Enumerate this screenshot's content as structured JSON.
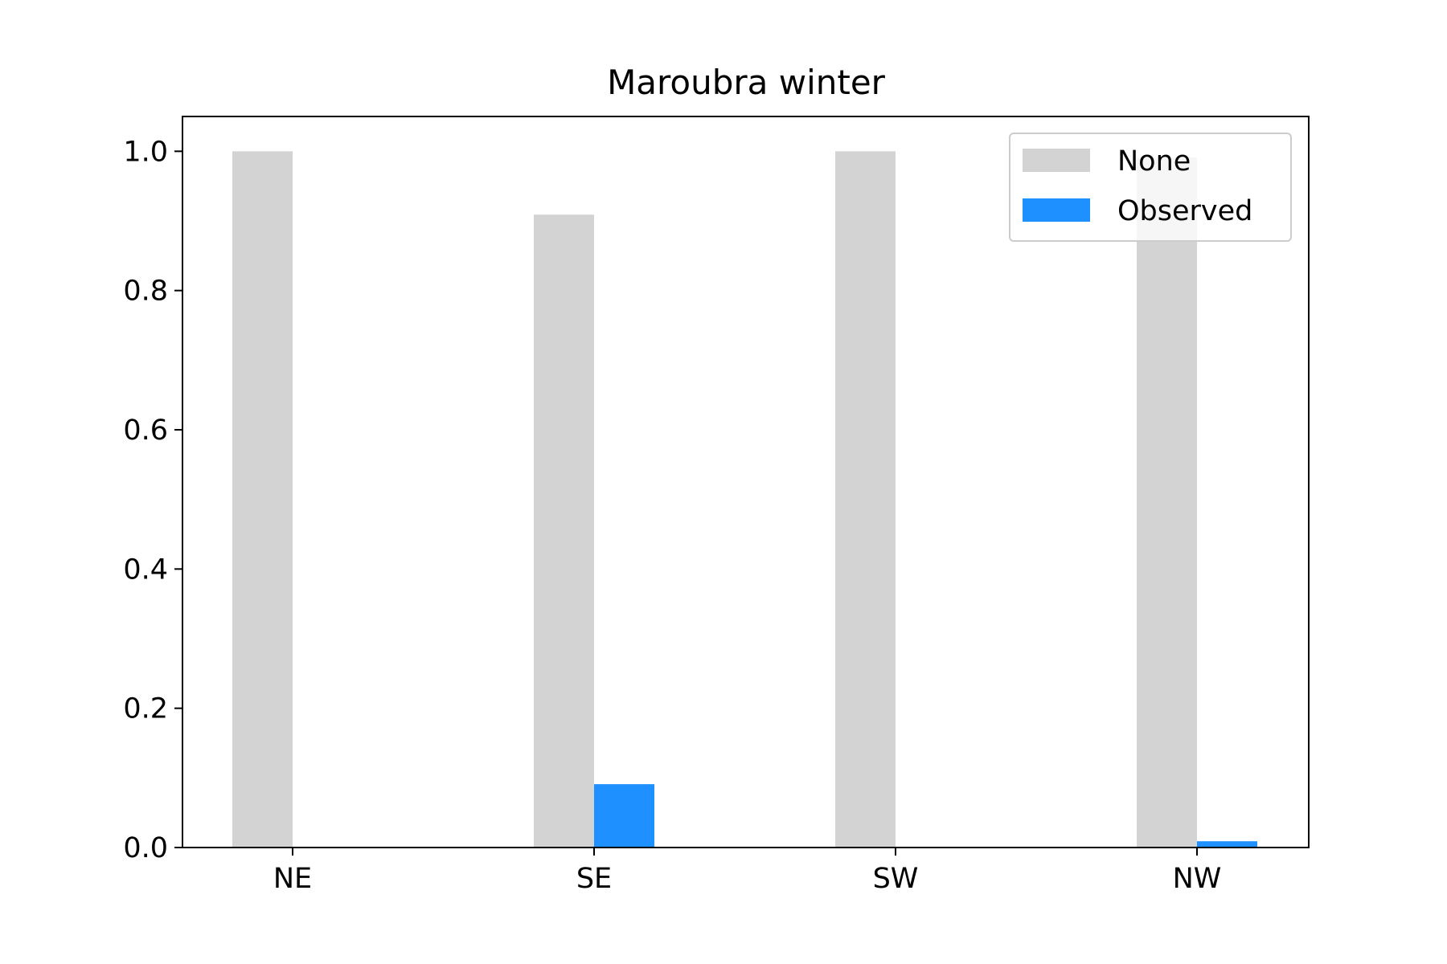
{
  "chart_data": {
    "type": "bar",
    "title": "Maroubra winter",
    "xlabel": "",
    "ylabel": "",
    "categories": [
      "NE",
      "SE",
      "SW",
      "NW"
    ],
    "series": [
      {
        "name": "None",
        "values": [
          1.0,
          0.909,
          1.0,
          0.991
        ],
        "color": "#d3d3d3"
      },
      {
        "name": "Observed",
        "values": [
          0.0,
          0.091,
          0.0,
          0.009
        ],
        "color": "#1e90ff"
      }
    ],
    "ylim": [
      0,
      1.05
    ],
    "yticks": [
      0.0,
      0.2,
      0.4,
      0.6,
      0.8,
      1.0
    ],
    "ytick_labels": [
      "0.0",
      "0.2",
      "0.4",
      "0.6",
      "0.8",
      "1.0"
    ],
    "grid": false,
    "legend_position": "top-right"
  }
}
